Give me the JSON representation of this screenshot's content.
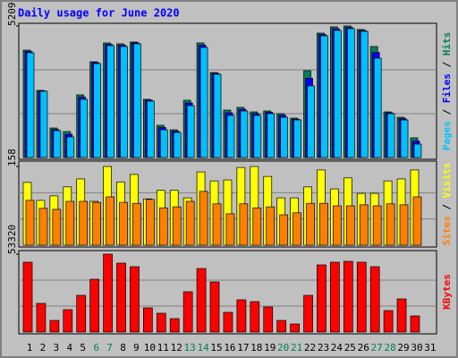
{
  "chart_data": {
    "type": "bar",
    "title": "Daily usage for June 2020",
    "categories": [
      "1",
      "2",
      "3",
      "4",
      "5",
      "6",
      "7",
      "8",
      "9",
      "10",
      "11",
      "12",
      "13",
      "14",
      "15",
      "16",
      "17",
      "18",
      "19",
      "20",
      "21",
      "22",
      "23",
      "24",
      "25",
      "26",
      "27",
      "28",
      "29",
      "30",
      "31"
    ],
    "category_colors": [
      "#000000",
      "#000000",
      "#000000",
      "#000000",
      "#000000",
      "#00805c",
      "#00805c",
      "#000000",
      "#000000",
      "#000000",
      "#000000",
      "#000000",
      "#00805c",
      "#00805c",
      "#000000",
      "#000000",
      "#000000",
      "#000000",
      "#000000",
      "#00805c",
      "#00805c",
      "#000000",
      "#000000",
      "#000000",
      "#000000",
      "#000000",
      "#00805c",
      "#00805c",
      "#000000",
      "#000000",
      "#000000"
    ],
    "panels": [
      {
        "ylim": [
          0,
          5209
        ],
        "yticks": [
          5209
        ],
        "series": [
          {
            "name": "Hits",
            "color": "#00805c",
            "values": [
              4252,
              2658,
              1169,
              1028,
              2481,
              3792,
              4536,
              4501,
              4572,
              2304,
              1276,
              1099,
              2268,
              4536,
              3367,
              1878,
              1985,
              1807,
              1843,
              1737,
              1559,
              3438,
              4926,
              5174,
              5209,
              5068,
              4395,
              1807,
              1595,
              780,
              0
            ]
          },
          {
            "name": "Files",
            "color": "#0000ff",
            "values": [
              4200,
              2640,
              1110,
              920,
              2390,
              3760,
              4480,
              4450,
              4540,
              2270,
              1190,
              1050,
              2160,
              4450,
              3330,
              1770,
              1910,
              1740,
              1790,
              1670,
              1520,
              3140,
              4870,
              5100,
              5150,
              5030,
              4160,
              1770,
              1540,
              650,
              0
            ]
          },
          {
            "name": "Pages",
            "color": "#00c0ff",
            "values": [
              4146,
              2623,
              1063,
              815,
              2304,
              3721,
              4430,
              4395,
              4501,
              2233,
              1099,
              992,
              2056,
              4359,
              3296,
              1666,
              1843,
              1666,
              1737,
              1595,
              1488,
              2835,
              4820,
              5033,
              5103,
              4997,
              3934,
              1737,
              1488,
              532,
              0
            ]
          }
        ]
      },
      {
        "ylim": [
          0,
          158
        ],
        "yticks": [
          158
        ],
        "series": [
          {
            "name": "Visits",
            "color": "#ffff00",
            "values": [
              126,
              90,
              99,
              117,
              133,
              88,
              158,
              127,
              142,
              93,
              110,
              110,
              95,
              147,
              129,
              131,
              156,
              158,
              138,
              95,
              95,
              117,
              151,
              113,
              135,
              104,
              104,
              129,
              133,
              151,
              0
            ]
          },
          {
            "name": "Sites",
            "color": "#ff8000",
            "values": [
              90,
              74,
              72,
              88,
              88,
              86,
              97,
              86,
              84,
              92,
              75,
              77,
              88,
              108,
              83,
              63,
              83,
              75,
              77,
              61,
              65,
              84,
              84,
              79,
              79,
              81,
              79,
              83,
              81,
              97,
              0
            ]
          }
        ]
      },
      {
        "ylim": [
          0,
          53320
        ],
        "yticks": [
          53320
        ],
        "series": [
          {
            "name": "KBytes",
            "color": "#ff0000",
            "values": [
              47805,
              19612,
              7967,
              15322,
              25128,
              36160,
              53320,
              47191,
              44740,
              16548,
              12870,
              9193,
              27579,
              43514,
              34321,
              13483,
              22063,
              20838,
              17161,
              7967,
              5516,
              25128,
              45967,
              47805,
              48418,
              47805,
              44740,
              14709,
              22676,
              11032,
              0
            ]
          }
        ]
      }
    ]
  }
}
